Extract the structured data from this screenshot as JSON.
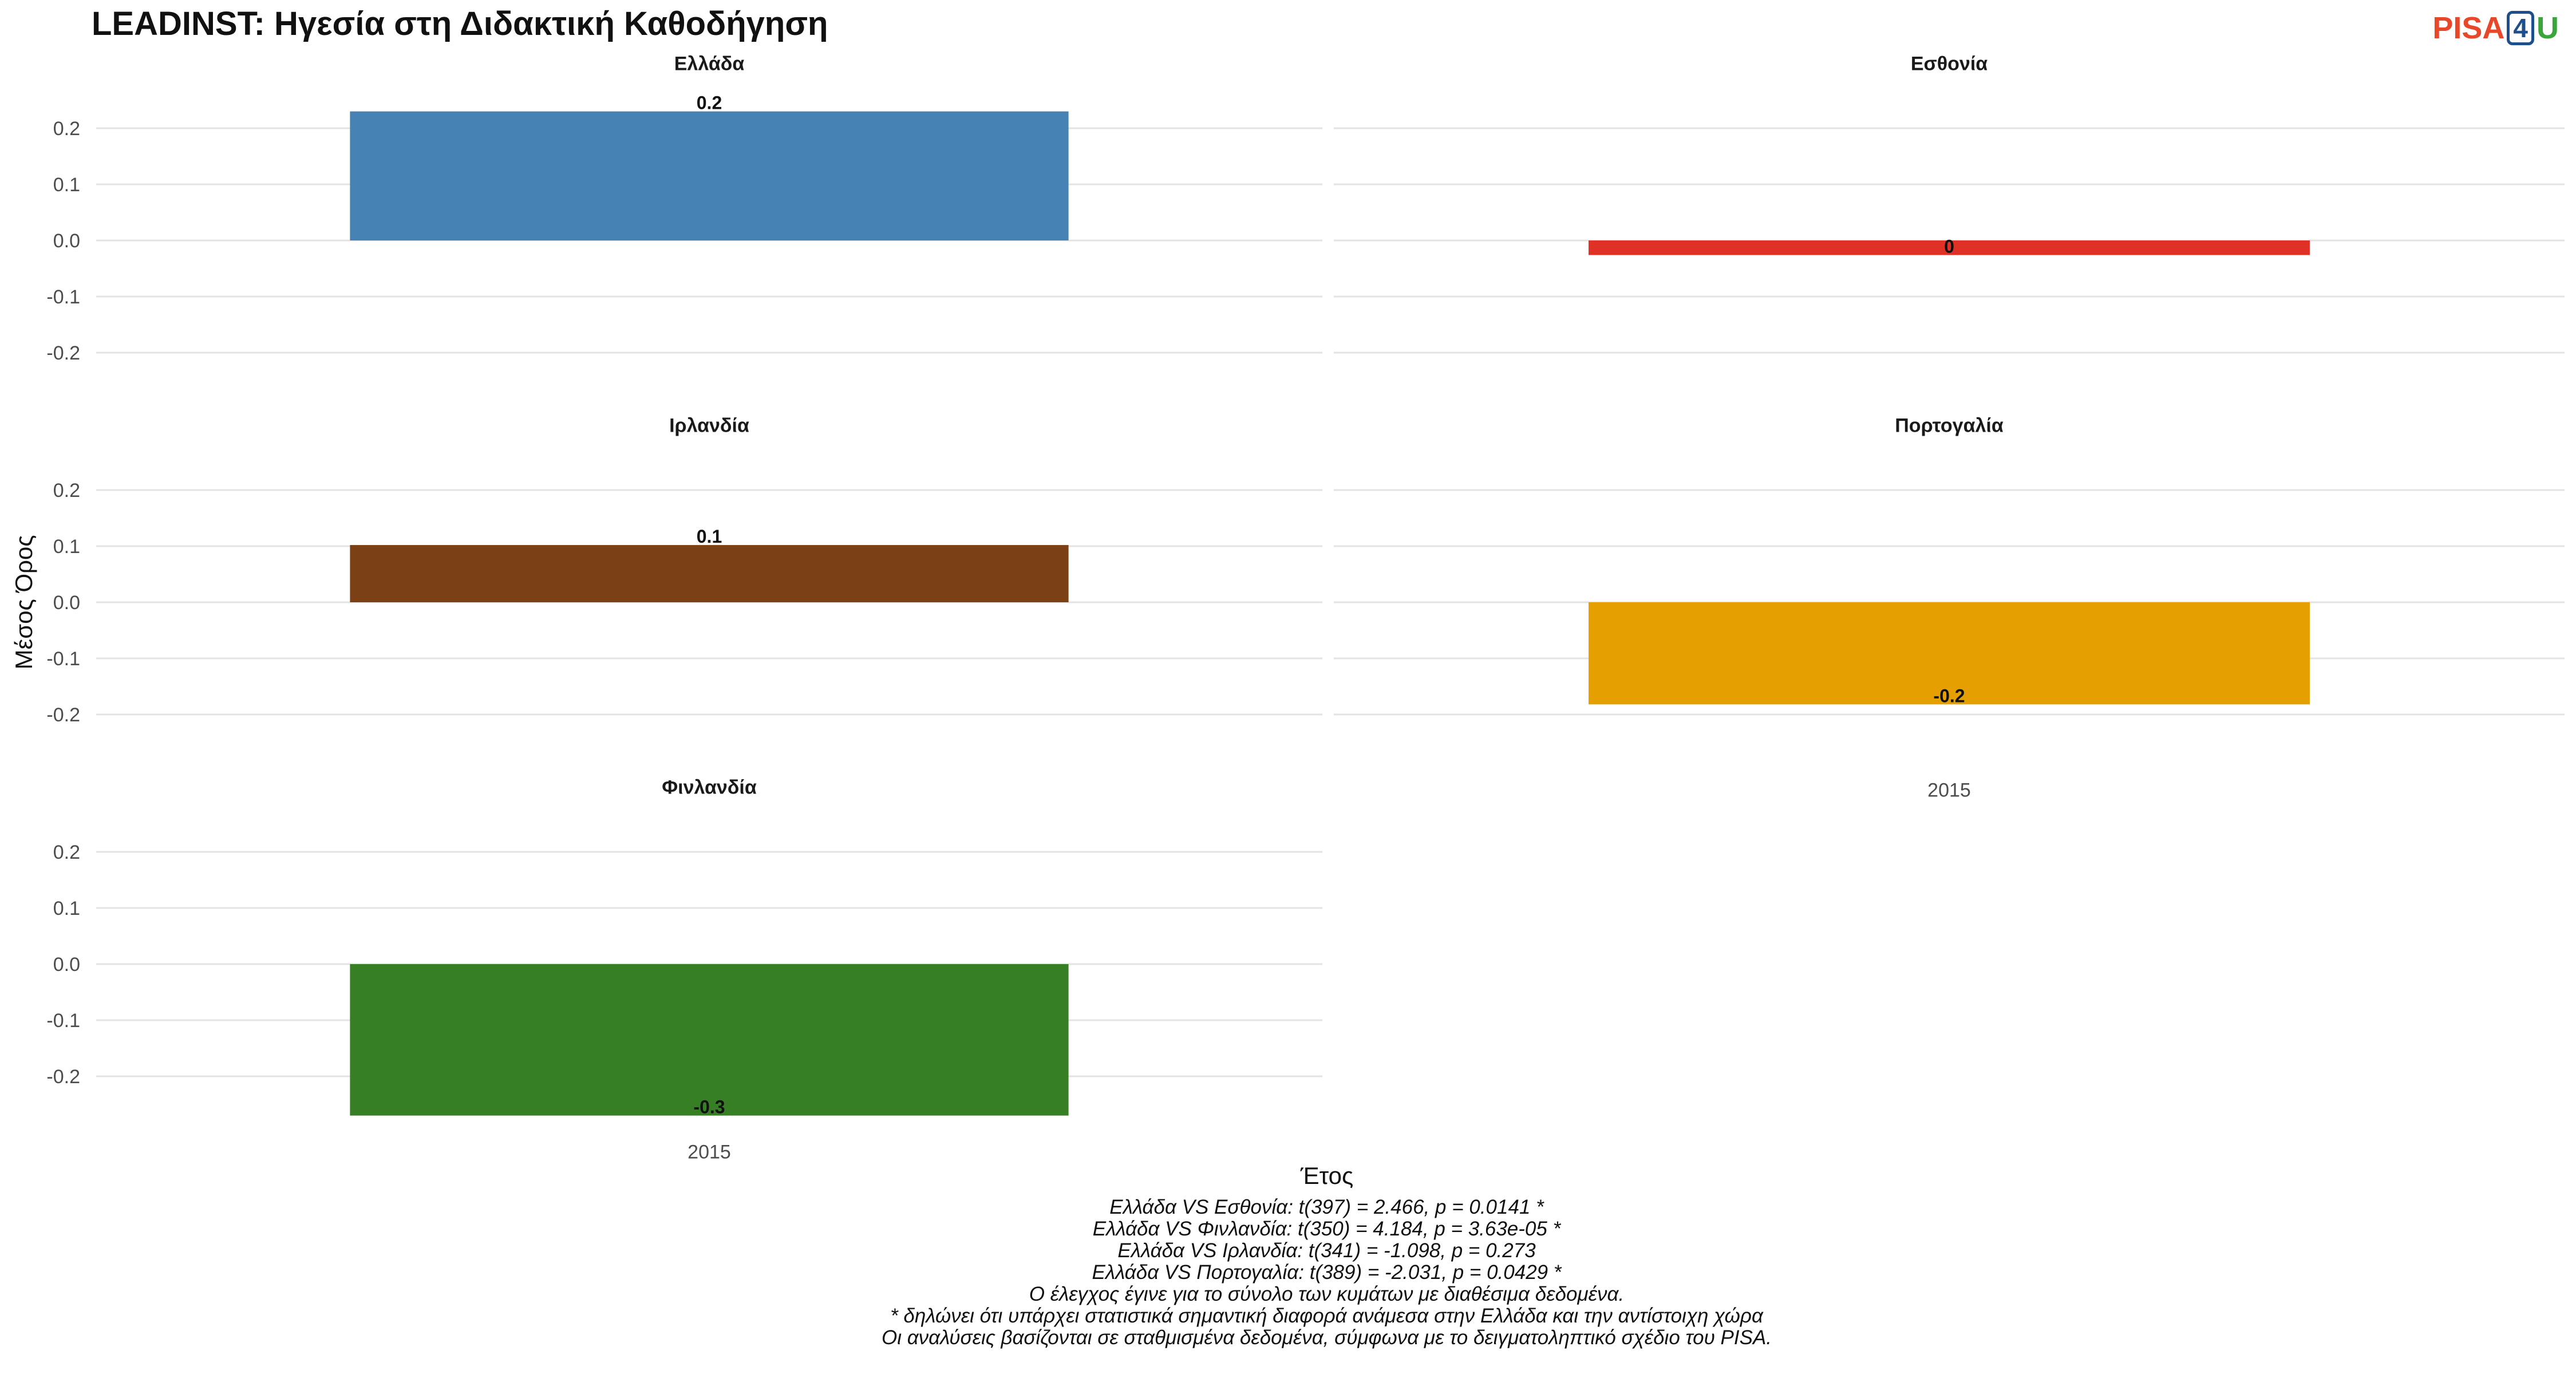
{
  "title": "LEADINST: Ηγεσία στη Διδακτική Καθοδήγηση",
  "logo": {
    "part1": "PISA",
    "part2": "4",
    "part3": "U"
  },
  "chart_data": {
    "type": "bar",
    "xlabel": "Έτος",
    "ylabel": "Μέσος Όρος",
    "ylim": [
      -0.27,
      0.24
    ],
    "yticks": [
      -0.2,
      -0.1,
      0.0,
      0.1,
      0.2
    ],
    "ytick_labels": [
      "-0.2",
      "-0.1",
      "0.0",
      "0.1",
      "0.2"
    ],
    "grid": true,
    "categories": [
      "2015"
    ],
    "panels": [
      {
        "name": "Ελλάδα",
        "x": "2015",
        "value": 0.23,
        "label": "0.2",
        "color": "#4682b4"
      },
      {
        "name": "Εσθονία",
        "x": "2015",
        "value": -0.026,
        "label": "0",
        "color": "#e03127"
      },
      {
        "name": "Ιρλανδία",
        "x": "2015",
        "value": 0.102,
        "label": "0.1",
        "color": "#7b4114"
      },
      {
        "name": "Πορτογαλία",
        "x": "2015",
        "value": -0.182,
        "label": "-0.2",
        "color": "#e69f00"
      },
      {
        "name": "Φινλανδία",
        "x": "2015",
        "value": -0.27,
        "label": "-0.3",
        "color": "#377f24"
      }
    ]
  },
  "caption": [
    "Ελλάδα VS Εσθονία: t(397) = 2.466, p = 0.0141 *",
    "Ελλάδα VS Φινλανδία: t(350) = 4.184, p = 3.63e-05 *",
    "Ελλάδα VS Ιρλανδία: t(341) = -1.098, p = 0.273",
    "Ελλάδα VS Πορτογαλία: t(389) = -2.031, p = 0.0429 *",
    "Ο έλεγχος έγινε για το σύνολο των κυμάτων με διαθέσιμα δεδομένα.",
    "* δηλώνει ότι υπάρχει στατιστικά σημαντική διαφορά ανάμεσα στην Ελλάδα και την αντίστοιχη χώρα",
    "Οι αναλύσεις βασίζονται σε σταθμισμένα δεδομένα, σύμφωνα με το δειγματοληπτικό σχέδιο του PISA."
  ]
}
